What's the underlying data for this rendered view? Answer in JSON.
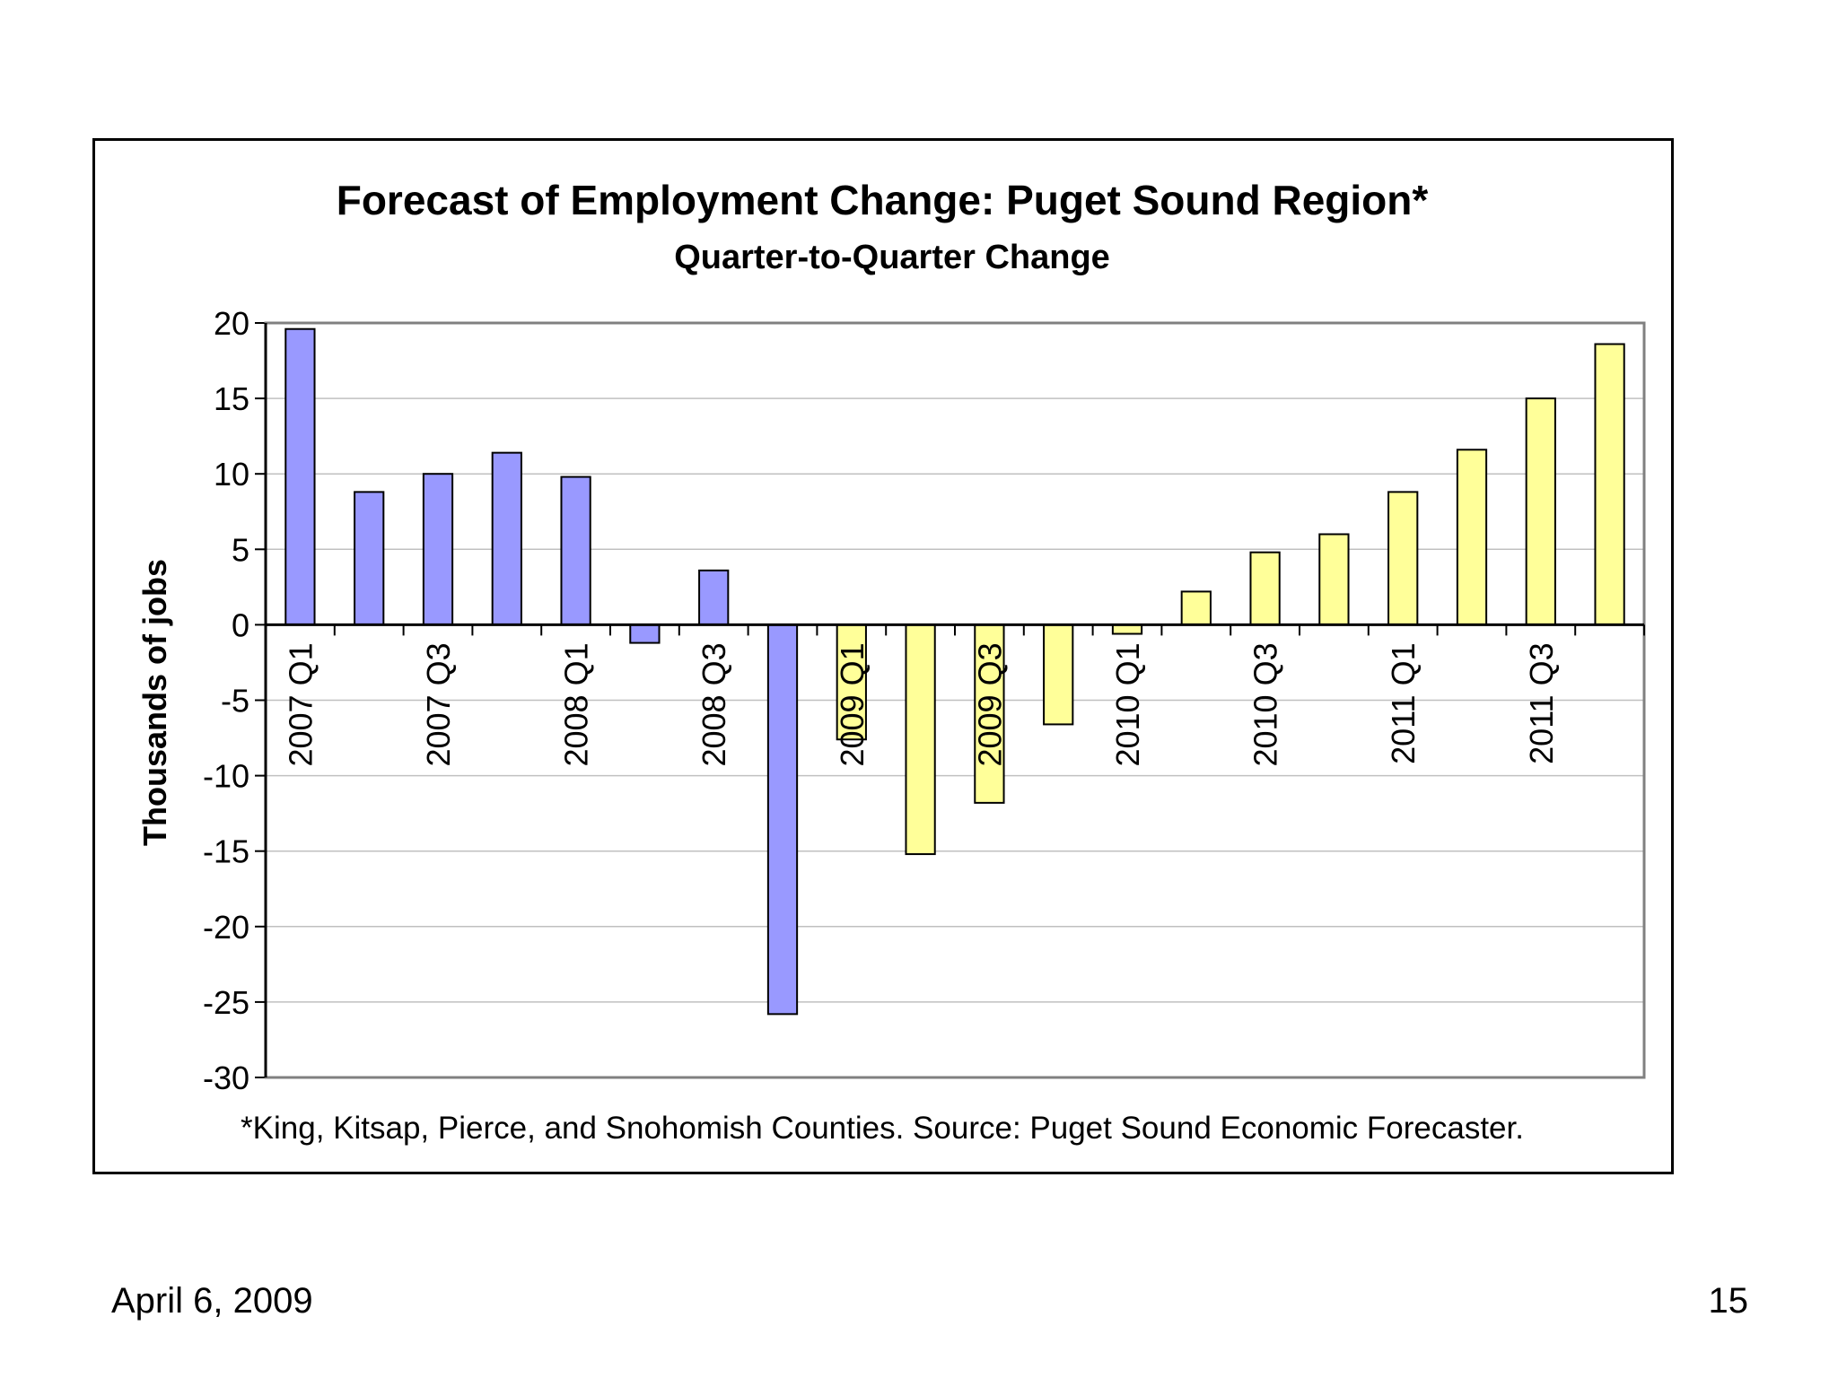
{
  "slide": {
    "date": "April 6, 2009",
    "page_number": "15"
  },
  "chart_data": {
    "type": "bar",
    "title": "Forecast of Employment Change: Puget Sound Region*",
    "subtitle": "Quarter-to-Quarter Change",
    "ylabel": "Thousands of jobs",
    "xlabel": "",
    "ylim": [
      -30,
      20
    ],
    "yticks": [
      20,
      15,
      10,
      5,
      0,
      -5,
      -10,
      -15,
      -20,
      -25,
      -30
    ],
    "grid": true,
    "footnote": "*King, Kitsap, Pierce, and Snohomish Counties. Source: Puget Sound Economic Forecaster.",
    "categories": [
      "2007 Q1",
      "2007 Q2",
      "2007 Q3",
      "2007 Q4",
      "2008 Q1",
      "2008 Q2",
      "2008 Q3",
      "2008 Q4",
      "2009 Q1",
      "2009 Q2",
      "2009 Q3",
      "2009 Q4",
      "2010 Q1",
      "2010 Q2",
      "2010 Q3",
      "2010 Q4",
      "2011 Q1",
      "2011 Q2",
      "2011 Q3",
      "2011 Q4"
    ],
    "category_labels_shown": [
      "2007 Q1",
      "",
      "2007 Q3",
      "",
      "2008 Q1",
      "",
      "2008 Q3",
      "",
      "2009 Q1",
      "",
      "2009 Q3",
      "",
      "2010 Q1",
      "",
      "2010 Q3",
      "",
      "2011 Q1",
      "",
      "2011 Q3",
      ""
    ],
    "values": [
      19.6,
      8.8,
      10.0,
      11.4,
      9.8,
      -1.2,
      3.6,
      -25.8,
      -7.6,
      -15.2,
      -11.8,
      -6.6,
      -0.6,
      2.2,
      4.8,
      6.0,
      8.8,
      11.6,
      15.0,
      18.6
    ],
    "bar_colors": [
      "#9999ff",
      "#9999ff",
      "#9999ff",
      "#9999ff",
      "#9999ff",
      "#9999ff",
      "#9999ff",
      "#9999ff",
      "#ffff99",
      "#ffff99",
      "#ffff99",
      "#ffff99",
      "#ffff99",
      "#ffff99",
      "#ffff99",
      "#ffff99",
      "#ffff99",
      "#ffff99",
      "#ffff99",
      "#ffff99"
    ],
    "colors": {
      "actual": "#9999ff",
      "forecast": "#ffff99",
      "gridline": "#c0c0c0",
      "plot_border": "#808080"
    }
  }
}
